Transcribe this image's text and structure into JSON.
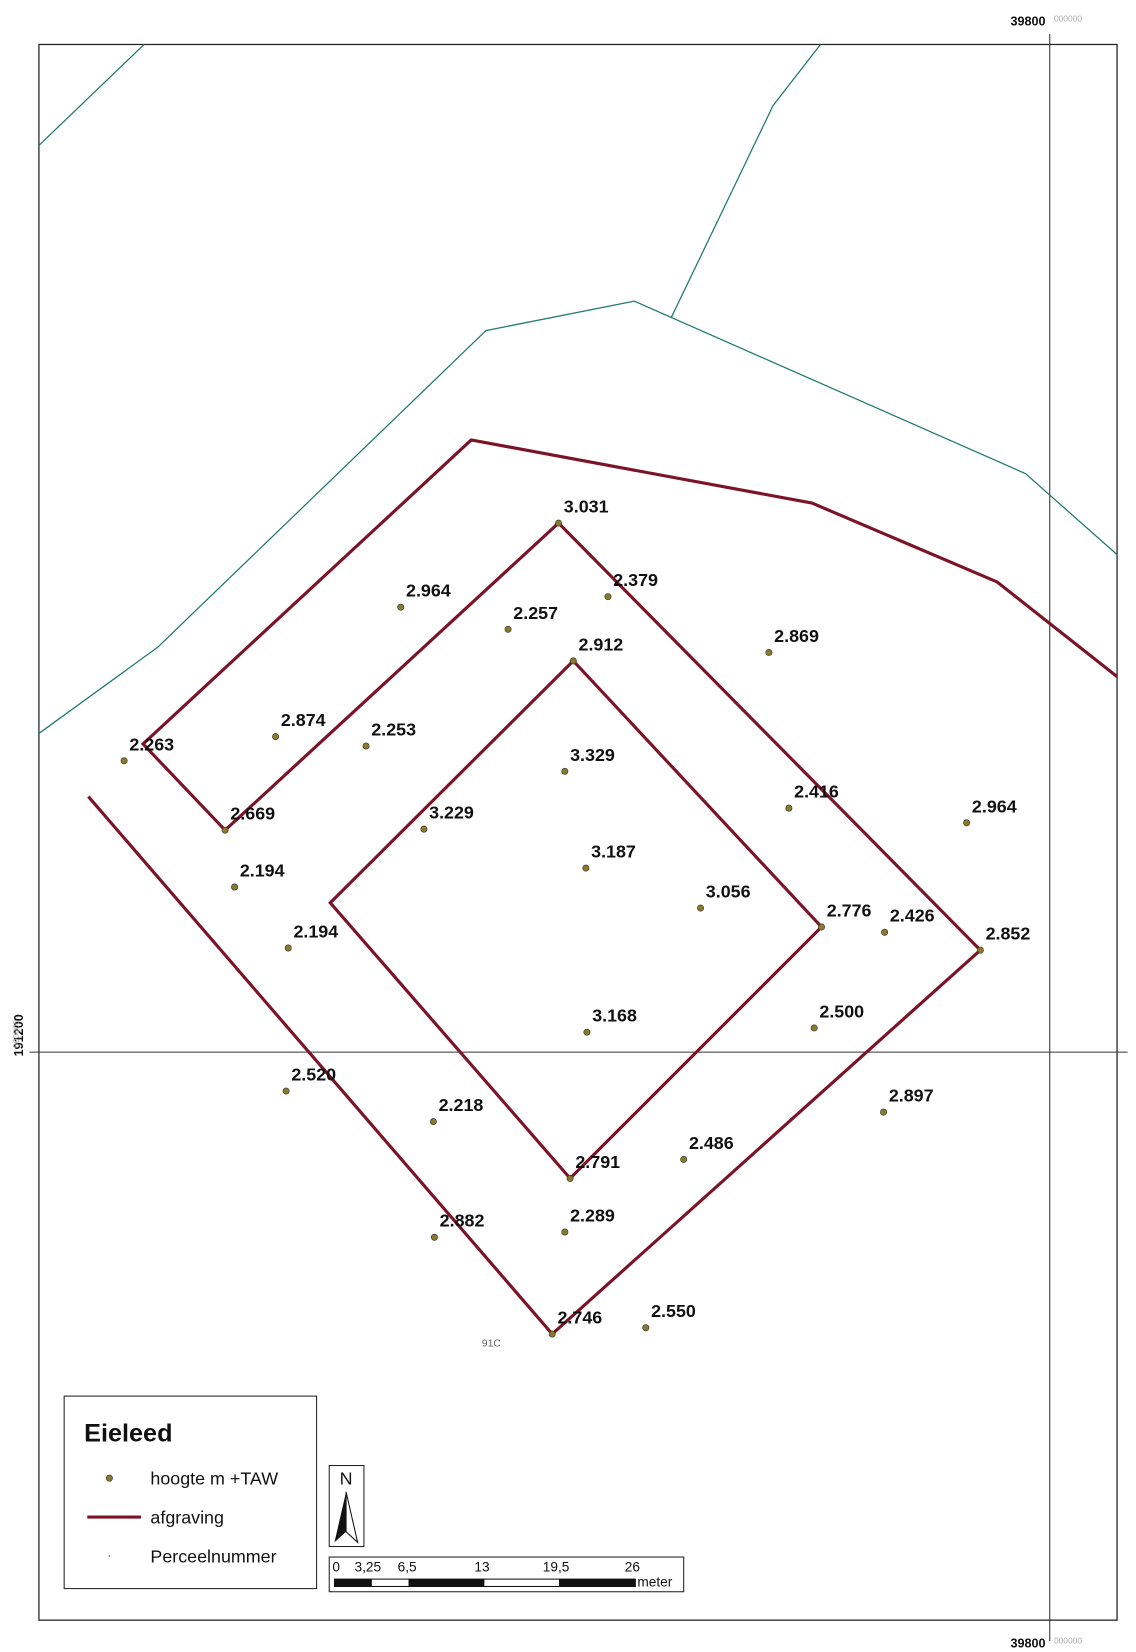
{
  "map": {
    "title": "Eieleed",
    "legend": [
      "hoogte m +TAW",
      "afgraving",
      "Perceelnummer"
    ],
    "coordinates": {
      "x_top": "39800",
      "x_bottom": "39800",
      "y_left": "191200",
      "suffix": "000000"
    },
    "parcel_label": "91C",
    "north": "N",
    "scale": {
      "ticks": [
        "0",
        "3,25",
        "6,5",
        "13",
        "19,5",
        "26"
      ],
      "unit": "meter"
    },
    "points": [
      "3.031",
      "2.964",
      "2.379",
      "2.257",
      "2.912",
      "2.869",
      "2.874",
      "2.253",
      "2.263",
      "3.329",
      "2.669",
      "2.416",
      "2.964",
      "3.229",
      "2.194",
      "3.187",
      "3.056",
      "2.776",
      "2.426",
      "2.852",
      "2.194",
      "3.168",
      "2.500",
      "2.520",
      "2.897",
      "2.218",
      "2.791",
      "2.486",
      "2.882",
      "2.289",
      "2.746",
      "2.550"
    ]
  }
}
